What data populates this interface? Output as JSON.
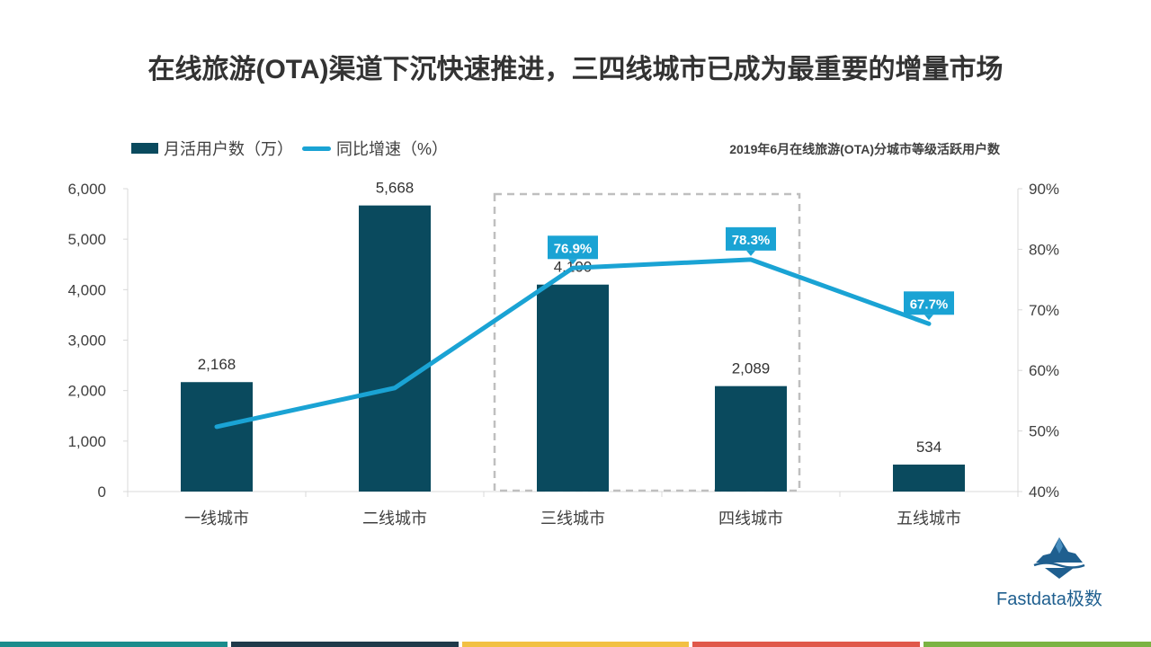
{
  "page": {
    "title": "在线旅游(OTA)渠道下沉快速推进，三四线城市已成为最重要的增量市场"
  },
  "chart_data": {
    "type": "bar",
    "title": "2019年6月在线旅游(OTA)分城市等级活跃用户数",
    "categories": [
      "一线城市",
      "二线城市",
      "三线城市",
      "四线城市",
      "五线城市"
    ],
    "series": [
      {
        "name": "月活用户数（万）",
        "type": "bar",
        "axis": "left",
        "color": "#0a4a5e",
        "values": [
          2168,
          5668,
          4100,
          2089,
          534
        ],
        "labels": [
          "2,168",
          "5,668",
          "4,100",
          "2,089",
          "534"
        ]
      },
      {
        "name": "同比增速（%）",
        "type": "line",
        "axis": "right",
        "color": "#1aa3d4",
        "values": [
          50.7,
          57.1,
          76.9,
          78.3,
          67.7
        ],
        "labels": [
          "",
          "",
          "76.9%",
          "78.3%",
          "67.7%"
        ]
      }
    ],
    "y_left": {
      "ylim": [
        0,
        6000
      ],
      "ticks": [
        0,
        1000,
        2000,
        3000,
        4000,
        5000,
        6000
      ],
      "tick_labels": [
        "0",
        "1,000",
        "2,000",
        "3,000",
        "4,000",
        "5,000",
        "6,000"
      ]
    },
    "y_right": {
      "ylim": [
        40,
        90
      ],
      "ticks": [
        40,
        50,
        60,
        70,
        80,
        90
      ],
      "tick_labels": [
        "40%",
        "50%",
        "60%",
        "70%",
        "80%",
        "90%"
      ]
    },
    "highlight": {
      "categories": [
        "三线城市",
        "四线城市"
      ],
      "style": "dashed-box"
    },
    "grid": false,
    "legend_position": "top-left"
  },
  "brand": {
    "name": "Fastdata极数"
  },
  "footer_colors": [
    "#1a8c8c",
    "#1f3a4a",
    "#f2c043",
    "#e0584a",
    "#7bb342"
  ]
}
